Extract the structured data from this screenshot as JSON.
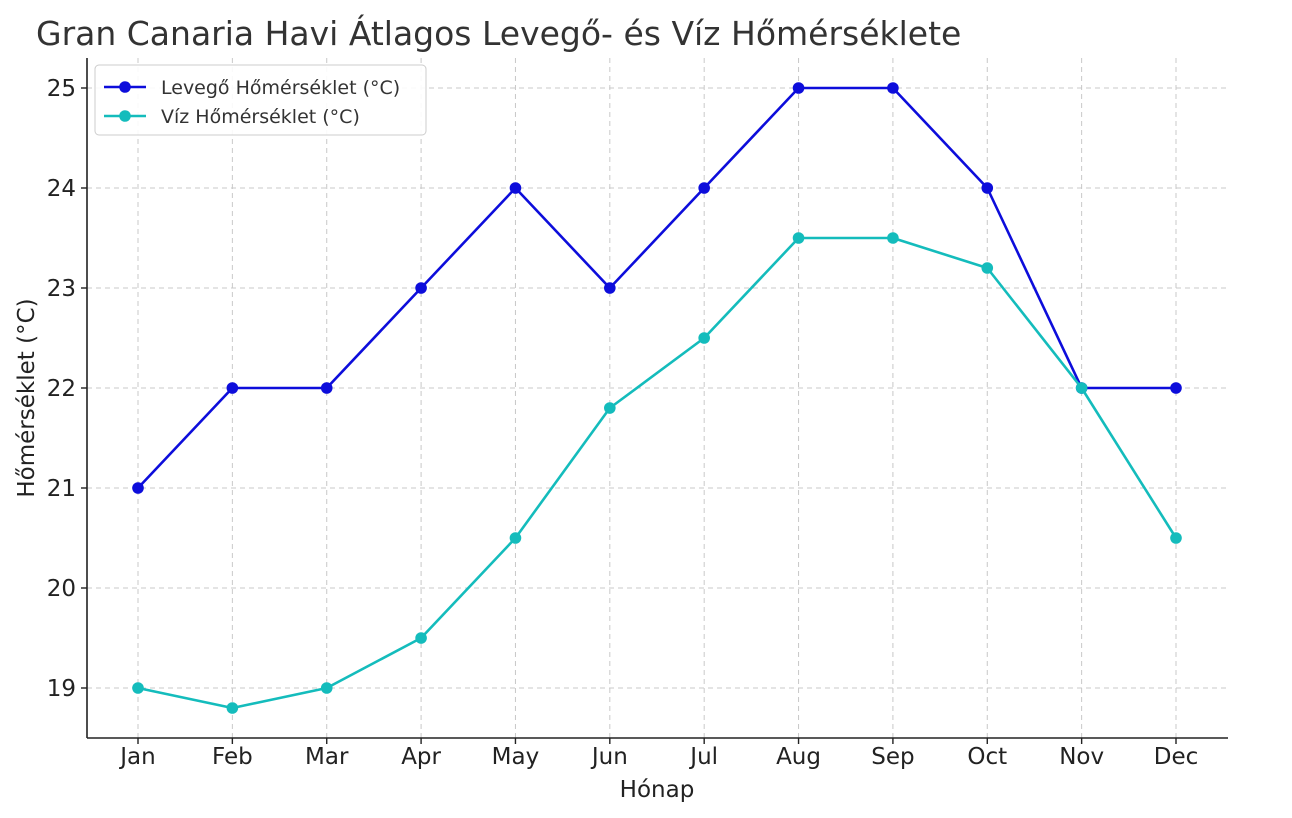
{
  "chart_data": {
    "type": "line",
    "title": "Gran Canaria Havi Átlagos Levegő- és Víz Hőmérséklete",
    "xlabel": "Hónap",
    "ylabel": "Hőmérséklet (°C)",
    "categories": [
      "Jan",
      "Feb",
      "Mar",
      "Apr",
      "May",
      "Jun",
      "Jul",
      "Aug",
      "Sep",
      "Oct",
      "Nov",
      "Dec"
    ],
    "ylim": [
      18.5,
      25.3
    ],
    "yticks": [
      19,
      20,
      21,
      22,
      23,
      24,
      25
    ],
    "grid": true,
    "legend_position": "top-left",
    "series": [
      {
        "name": "Levegő Hőmérséklet (°C)",
        "color": "#0d0ddb",
        "marker": "circle",
        "values": [
          21,
          22,
          22,
          23,
          24,
          23,
          24,
          25,
          25,
          24,
          22,
          22
        ]
      },
      {
        "name": "Víz Hőmérséklet (°C)",
        "color": "#14bcbc",
        "marker": "circle",
        "values": [
          19,
          18.8,
          19,
          19.5,
          20.5,
          21.8,
          22.5,
          23.5,
          23.5,
          23.2,
          22,
          20.5
        ]
      }
    ]
  }
}
